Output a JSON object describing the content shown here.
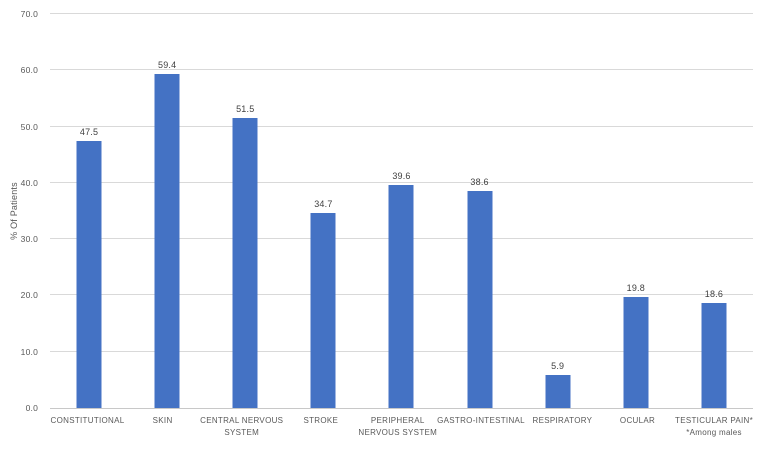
{
  "chart_data": {
    "type": "bar",
    "ylabel": "% Of Patients",
    "ylim": [
      0,
      70
    ],
    "ytick_step": 10,
    "yticks": [
      "0.0",
      "10.0",
      "20.0",
      "30.0",
      "40.0",
      "50.0",
      "60.0",
      "70.0"
    ],
    "categories": [
      "CONSTITUTIONAL",
      "SKIN",
      "CENTRAL NERVOUS\nSYSTEM",
      "STROKE",
      "PERIPHERAL\nNERVOUS SYSTEM",
      "GASTRO-INTESTINAL",
      "RESPIRATORY",
      "OCULAR",
      "TESTICULAR PAIN*\n*Among males"
    ],
    "values": [
      47.5,
      59.4,
      51.5,
      34.7,
      39.6,
      38.6,
      5.9,
      19.8,
      18.6
    ],
    "data_labels": [
      "47.5",
      "59.4",
      "51.5",
      "34.7",
      "39.6",
      "38.6",
      "5.9",
      "19.8",
      "18.6"
    ],
    "footnote": "*Among males",
    "legend_position": "none",
    "grid": "horizontal",
    "colors": {
      "bar": "#4472C4",
      "gridline": "#D9D9D9",
      "axis_line": "#C8C8C8",
      "tick_text": "#595959",
      "label_text": "#404040"
    }
  }
}
